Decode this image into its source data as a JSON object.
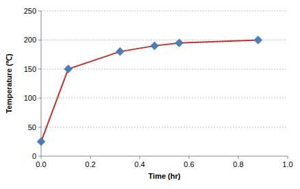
{
  "chart_data": {
    "type": "line",
    "x": [
      0,
      0.11,
      0.32,
      0.46,
      0.56,
      0.88
    ],
    "values": [
      25,
      150,
      180,
      190,
      195,
      200
    ],
    "color": "#c0302a",
    "marker": "diamond",
    "xlabel": "Time (hr)",
    "ylabel": "Temperature (℃)",
    "xlim": [
      0,
      1
    ],
    "xticks": [
      {
        "value": 0,
        "label": "0.0"
      },
      0.2,
      0.4,
      0.6,
      0.8,
      {
        "value": 1,
        "label": "1.0"
      }
    ],
    "ylim": [
      0,
      250
    ],
    "yticks": [
      0,
      50,
      100,
      150,
      200,
      250
    ],
    "grid": true
  }
}
